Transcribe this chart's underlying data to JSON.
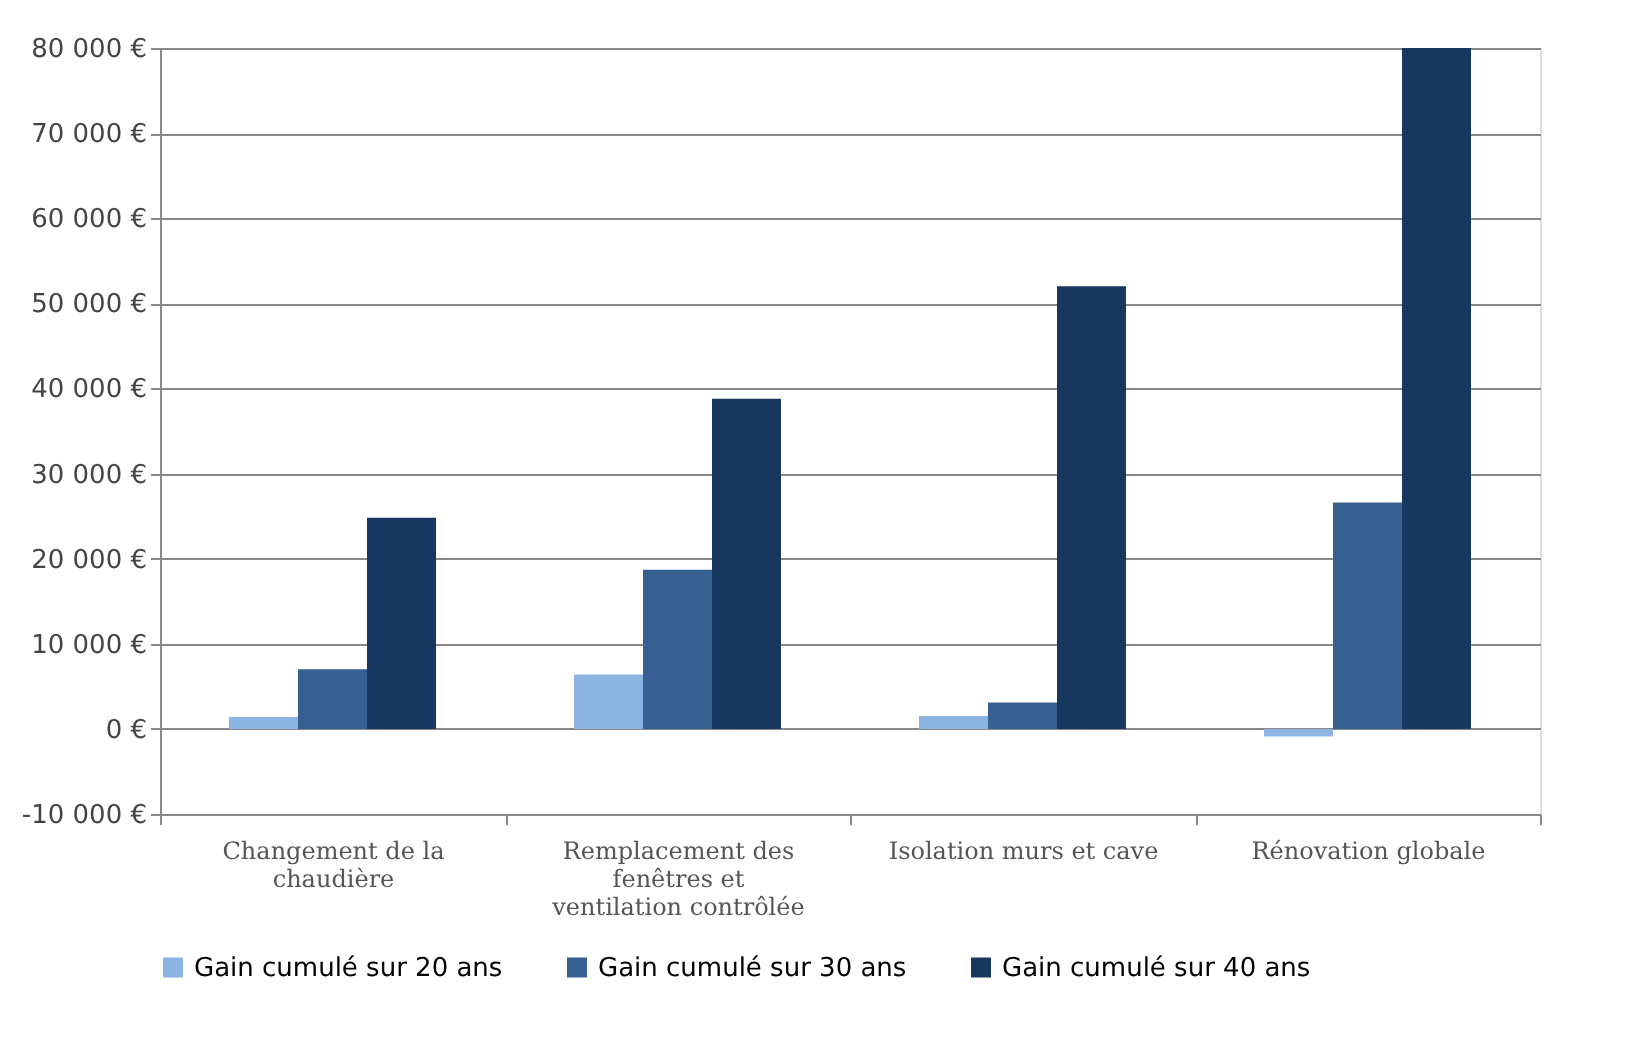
{
  "chart_data": {
    "type": "bar",
    "categories": [
      "Changement de la chaudière",
      "Remplacement des fenêtres et ventilation contrôlée",
      "Isolation murs et cave",
      "Rénovation globale"
    ],
    "series": [
      {
        "name": "Gain cumulé sur 20 ans",
        "color": "#8db3e2",
        "values": [
          1400,
          6400,
          1500,
          -900
        ]
      },
      {
        "name": "Gain cumulé sur 30 ans",
        "color": "#376092",
        "values": [
          7000,
          18700,
          3100,
          26600
        ]
      },
      {
        "name": "Gain cumulé sur 40 ans",
        "color": "#17375e",
        "values": [
          24800,
          38800,
          52000,
          80000
        ]
      }
    ],
    "ylim": [
      -10000,
      80000
    ],
    "yticks": [
      {
        "value": -10000,
        "label": "-10 000 €"
      },
      {
        "value": 0,
        "label": "0 €"
      },
      {
        "value": 10000,
        "label": "10 000 €"
      },
      {
        "value": 20000,
        "label": "20 000 €"
      },
      {
        "value": 30000,
        "label": "30 000 €"
      },
      {
        "value": 40000,
        "label": "40 000 €"
      },
      {
        "value": 50000,
        "label": "50 000 €"
      },
      {
        "value": 60000,
        "label": "60 000 €"
      },
      {
        "value": 70000,
        "label": "70 000 €"
      },
      {
        "value": 80000,
        "label": "80 000 €"
      }
    ],
    "grid": "y",
    "legend": "bottom"
  }
}
